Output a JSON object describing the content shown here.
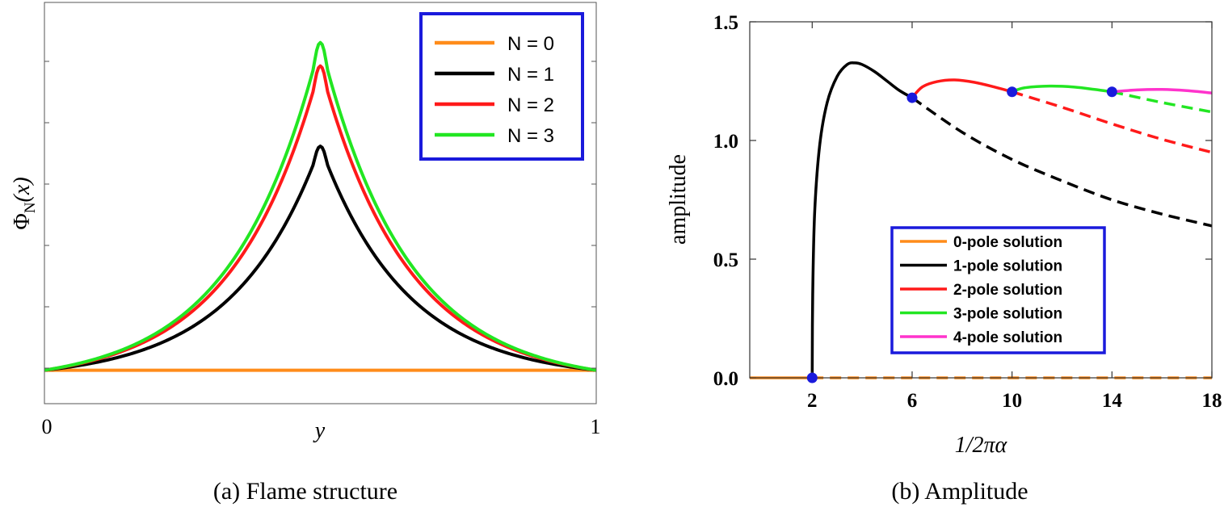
{
  "chart_data": [
    {
      "type": "line",
      "caption": "(a)  Flame structure",
      "xlabel": "y",
      "ylabel": "Φ_N(x)",
      "ylabel_main": "Φ",
      "ylabel_sub": "N",
      "ylabel_paren": "(x)",
      "xlim": [
        0,
        1
      ],
      "ylim": [
        -0.1,
        1.1
      ],
      "x_tick_labels": [
        "0",
        "1"
      ],
      "y_tick_labels": [],
      "grid": false,
      "legend_position": "top-right",
      "colors": {
        "N0": "#ff8c1a",
        "N1": "#000000",
        "N2": "#ff1a1a",
        "N3": "#22e622",
        "legend_border": "#1a1adc"
      },
      "series": [
        {
          "name": "N = 0",
          "color": "#ff8c1a",
          "peak_x": 0.5,
          "peak": 0.0
        },
        {
          "name": "N = 1",
          "color": "#000000",
          "peak_x": 0.5,
          "peak": 0.67
        },
        {
          "name": "N = 2",
          "color": "#ff1a1a",
          "peak_x": 0.5,
          "peak": 0.91
        },
        {
          "name": "N = 3",
          "color": "#22e622",
          "peak_x": 0.5,
          "peak": 0.98
        }
      ]
    },
    {
      "type": "line",
      "caption": "(b)  Amplitude",
      "xlabel": "1/2πα",
      "ylabel": "amplitude",
      "xlim": [
        -0.5,
        18
      ],
      "ylim": [
        0,
        1.5
      ],
      "x_ticks": [
        2,
        6,
        10,
        14,
        18
      ],
      "x_tick_labels": [
        "2",
        "6",
        "10",
        "14",
        "18"
      ],
      "y_ticks": [
        0,
        0.5,
        1,
        1.5
      ],
      "y_tick_labels": [
        "0.0",
        "0.5",
        "1.0",
        "1.5"
      ],
      "grid": false,
      "legend_position": "bottom-center",
      "colors": {
        "p0": "#ff8c1a",
        "p1": "#000000",
        "p2": "#ff1a1a",
        "p3": "#22e622",
        "p4": "#ff33cc",
        "marker": "#1a1adc",
        "legend_border": "#1a1adc"
      },
      "series": [
        {
          "name": "0-pole solution",
          "color": "#ff8c1a",
          "solid": [
            [
              -0.5,
              0.0
            ],
            [
              2,
              0.0
            ]
          ],
          "dashed": [
            [
              2,
              0.0
            ],
            [
              18,
              0.0
            ]
          ]
        },
        {
          "name": "1-pole solution",
          "color": "#000000",
          "solid": [
            [
              2,
              0.0
            ],
            [
              2.02,
              0.35
            ],
            [
              2.1,
              0.7
            ],
            [
              2.3,
              0.98
            ],
            [
              2.6,
              1.16
            ],
            [
              3.0,
              1.27
            ],
            [
              3.4,
              1.32
            ],
            [
              3.7,
              1.327
            ],
            [
              4.0,
              1.32
            ],
            [
              4.5,
              1.29
            ],
            [
              5.0,
              1.25
            ],
            [
              5.5,
              1.21
            ],
            [
              6.0,
              1.18
            ]
          ],
          "dashed": [
            [
              6.0,
              1.18
            ],
            [
              8.0,
              1.035
            ],
            [
              10.0,
              0.92
            ],
            [
              12.0,
              0.83
            ],
            [
              14.0,
              0.75
            ],
            [
              16.0,
              0.69
            ],
            [
              18.0,
              0.64
            ]
          ]
        },
        {
          "name": "2-pole solution",
          "color": "#ff1a1a",
          "solid": [
            [
              6.0,
              1.18
            ],
            [
              6.4,
              1.225
            ],
            [
              7.0,
              1.248
            ],
            [
              7.7,
              1.255
            ],
            [
              8.5,
              1.245
            ],
            [
              9.3,
              1.225
            ],
            [
              10.0,
              1.205
            ]
          ],
          "dashed": [
            [
              10.0,
              1.205
            ],
            [
              12.0,
              1.14
            ],
            [
              14.0,
              1.07
            ],
            [
              16.0,
              1.005
            ],
            [
              18.0,
              0.95
            ]
          ]
        },
        {
          "name": "3-pole solution",
          "color": "#22e622",
          "solid": [
            [
              10.0,
              1.205
            ],
            [
              10.5,
              1.222
            ],
            [
              11.5,
              1.229
            ],
            [
              12.5,
              1.225
            ],
            [
              13.3,
              1.215
            ],
            [
              14.0,
              1.205
            ]
          ],
          "dashed": [
            [
              14.0,
              1.205
            ],
            [
              16.0,
              1.16
            ],
            [
              18.0,
              1.12
            ]
          ]
        },
        {
          "name": "4-pole solution",
          "color": "#ff33cc",
          "solid": [
            [
              14.0,
              1.205
            ],
            [
              15.0,
              1.213
            ],
            [
              16.0,
              1.215
            ],
            [
              17.0,
              1.21
            ],
            [
              18.0,
              1.2
            ]
          ],
          "dashed": []
        }
      ],
      "markers": [
        [
          2,
          0.0
        ],
        [
          6,
          1.18
        ],
        [
          10,
          1.205
        ],
        [
          14,
          1.205
        ]
      ]
    }
  ]
}
